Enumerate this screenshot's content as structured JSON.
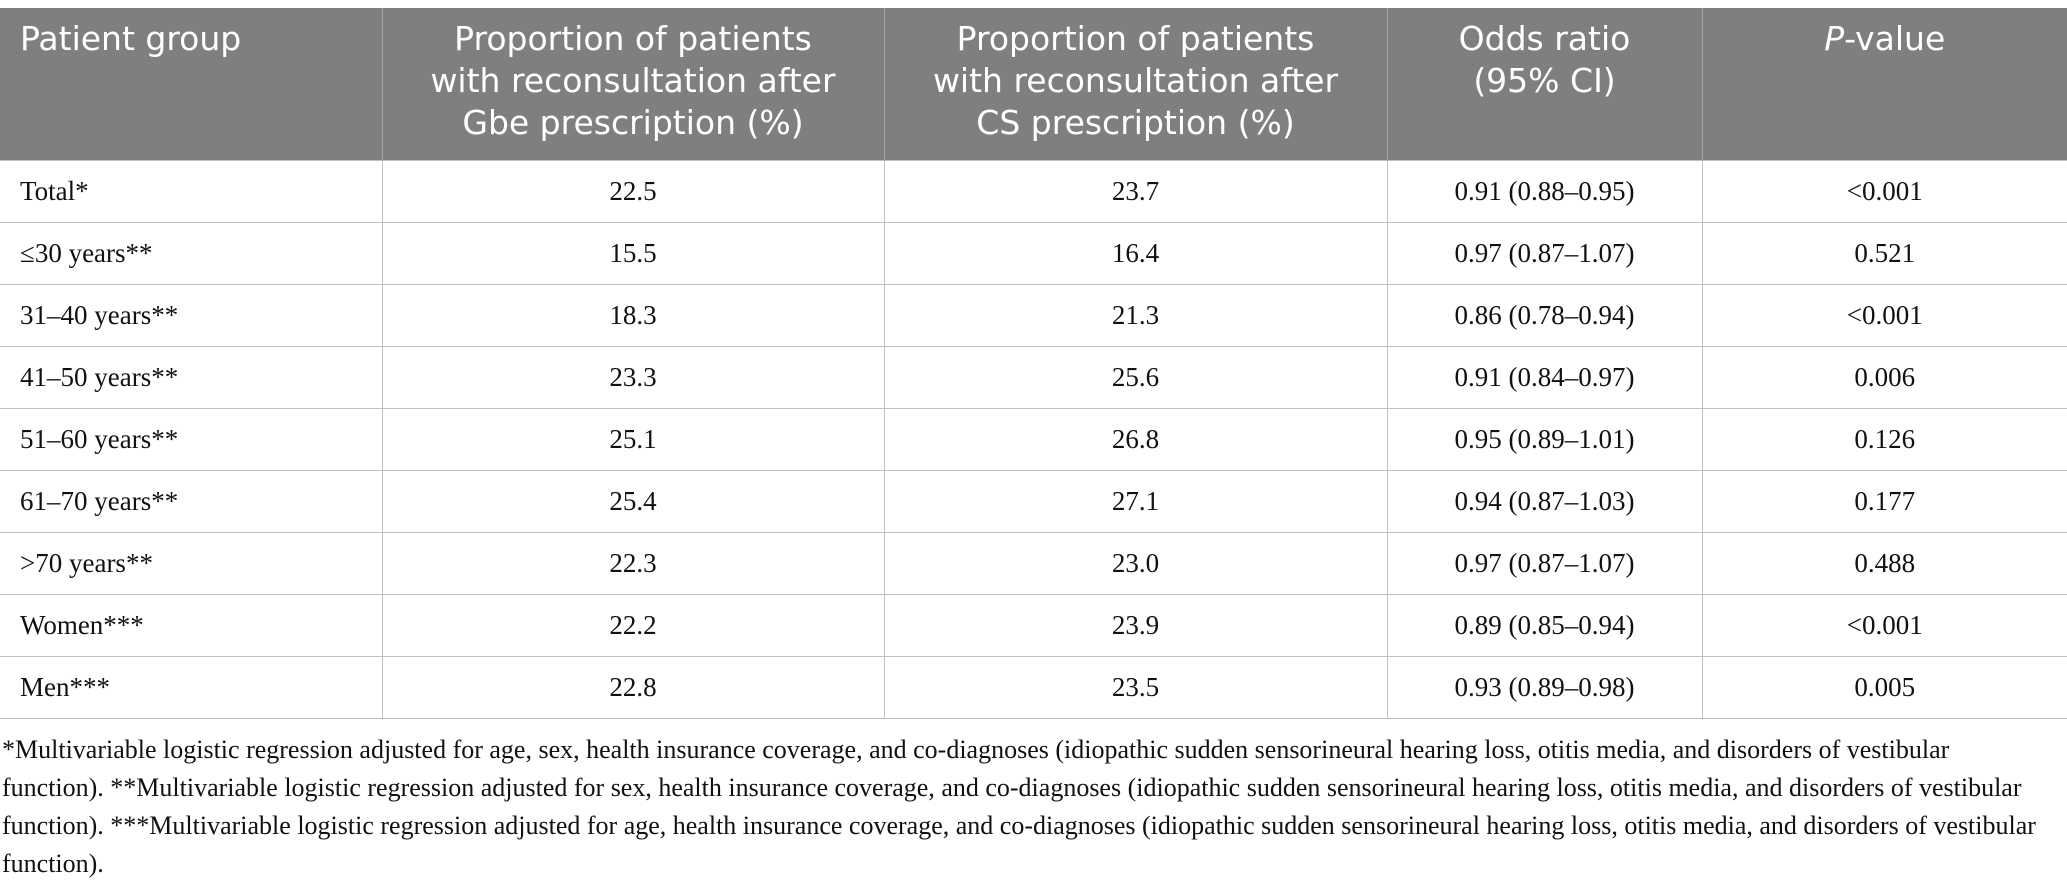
{
  "table": {
    "headers": {
      "group": "Patient group",
      "gbe": [
        "Proportion of patients",
        "with reconsultation after",
        "Gbe prescription (%)"
      ],
      "cs": [
        "Proportion of patients",
        "with reconsultation after",
        "CS prescription (%)"
      ],
      "or": [
        "Odds ratio",
        "(95% CI)"
      ],
      "p_italic": "P",
      "p_rest": "-value"
    },
    "rows": [
      {
        "group": "Total*",
        "gbe": "22.5",
        "cs": "23.7",
        "or": "0.91 (0.88–0.95)",
        "p": "<0.001"
      },
      {
        "group": "≤30 years**",
        "gbe": "15.5",
        "cs": "16.4",
        "or": "0.97 (0.87–1.07)",
        "p": "0.521"
      },
      {
        "group": "31–40 years**",
        "gbe": "18.3",
        "cs": "21.3",
        "or": "0.86 (0.78–0.94)",
        "p": "<0.001"
      },
      {
        "group": "41–50 years**",
        "gbe": "23.3",
        "cs": "25.6",
        "or": "0.91 (0.84–0.97)",
        "p": "0.006"
      },
      {
        "group": "51–60 years**",
        "gbe": "25.1",
        "cs": "26.8",
        "or": "0.95 (0.89–1.01)",
        "p": "0.126"
      },
      {
        "group": "61–70 years**",
        "gbe": "25.4",
        "cs": "27.1",
        "or": "0.94 (0.87–1.03)",
        "p": "0.177"
      },
      {
        "group": ">70 years**",
        "gbe": "22.3",
        "cs": "23.0",
        "or": "0.97 (0.87–1.07)",
        "p": "0.488"
      },
      {
        "group": "Women***",
        "gbe": "22.2",
        "cs": "23.9",
        "or": "0.89 (0.85–0.94)",
        "p": "<0.001"
      },
      {
        "group": "Men***",
        "gbe": "22.8",
        "cs": "23.5",
        "or": "0.93 (0.89–0.98)",
        "p": "0.005"
      }
    ]
  },
  "footnotes": "*Multivariable logistic regression adjusted for age, sex, health insurance coverage, and co-diagnoses (idiopathic sudden sensorineural hearing loss, otitis media, and disorders of vestibular function). **Multivariable logistic regression adjusted for sex, health insurance coverage, and co-diagnoses (idiopathic sudden sensorineural hearing loss, otitis media, and disorders of vestibular function). ***Multivariable logistic regression adjusted for age, health insurance coverage, and co-diagnoses (idiopathic sudden sensorineural hearing loss, otitis media, and disorders of vestibular function)."
}
